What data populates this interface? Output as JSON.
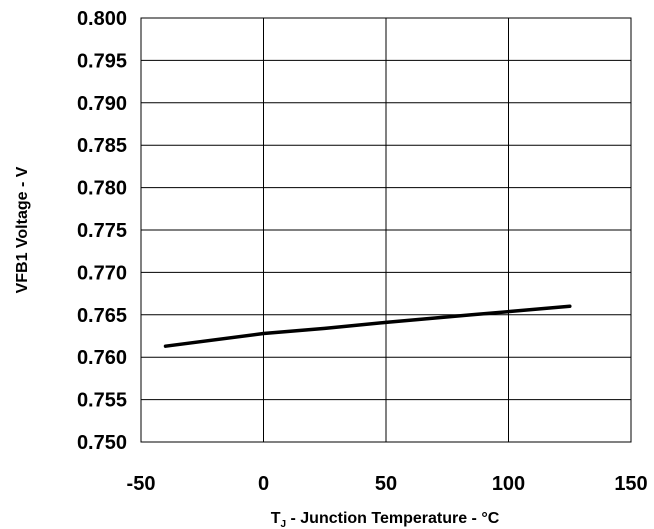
{
  "chart_data": {
    "type": "line",
    "title": "",
    "xlabel_main": "T",
    "xlabel_sub": "J",
    "xlabel_rest": " - Junction Temperature - °C",
    "ylabel": "VFB1 Voltage - V",
    "xlim": [
      -50,
      150
    ],
    "ylim": [
      0.75,
      0.8
    ],
    "xticks": [
      -50,
      0,
      50,
      100,
      150
    ],
    "yticks": [
      0.75,
      0.755,
      0.76,
      0.765,
      0.77,
      0.775,
      0.78,
      0.785,
      0.79,
      0.795,
      0.8
    ],
    "xtick_labels": [
      "-50",
      "0",
      "50",
      "100",
      "150"
    ],
    "ytick_labels": [
      "0.750",
      "0.755",
      "0.760",
      "0.765",
      "0.770",
      "0.775",
      "0.780",
      "0.785",
      "0.790",
      "0.795",
      "0.800"
    ],
    "grid": true,
    "series": [
      {
        "x": [
          -40,
          0,
          25,
          50,
          85,
          125
        ],
        "y": [
          0.7613,
          0.7628,
          0.7634,
          0.7641,
          0.765,
          0.766
        ]
      }
    ]
  }
}
